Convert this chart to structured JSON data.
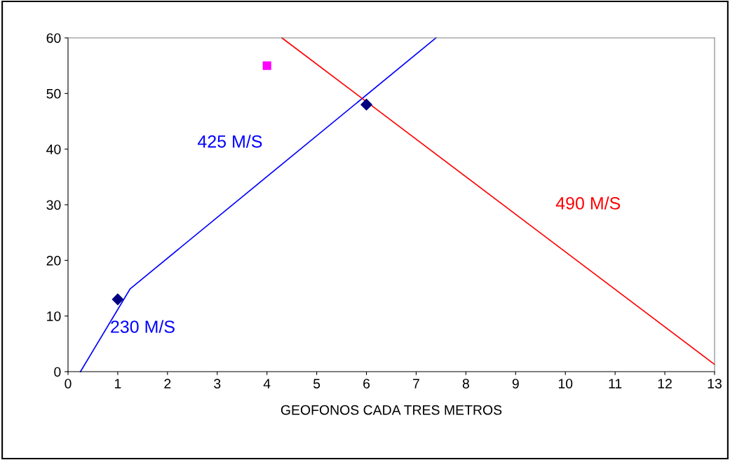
{
  "chart_data": {
    "type": "line",
    "xlabel": "GEOFONOS CADA TRES METROS",
    "xlim": [
      0,
      13
    ],
    "xticks": [
      0,
      1,
      2,
      3,
      4,
      5,
      6,
      7,
      8,
      9,
      10,
      11,
      12,
      13
    ],
    "ylim": [
      0,
      60
    ],
    "yticks": [
      0,
      10,
      20,
      30,
      40,
      50,
      60
    ],
    "grid": false,
    "legend": false,
    "series": [
      {
        "color": "#0000ff",
        "x": [
          0.25,
          1.25,
          7.4
        ],
        "values": [
          0,
          14.9,
          60
        ],
        "marker": "none",
        "line_style": "solid"
      },
      {
        "color": "#ff0000",
        "x": [
          4.3,
          13
        ],
        "values": [
          60,
          1.3
        ],
        "marker": "none",
        "line_style": "solid"
      },
      {
        "type": "scatter",
        "color": "#000080",
        "x": [
          1,
          6
        ],
        "values": [
          13,
          48
        ],
        "marker": "diamond"
      },
      {
        "type": "scatter",
        "color": "#ff00ff",
        "x": [
          4
        ],
        "values": [
          55
        ],
        "marker": "square"
      }
    ],
    "annotations": [
      "425 M/S",
      "490 M/S",
      "230 M/S"
    ]
  }
}
